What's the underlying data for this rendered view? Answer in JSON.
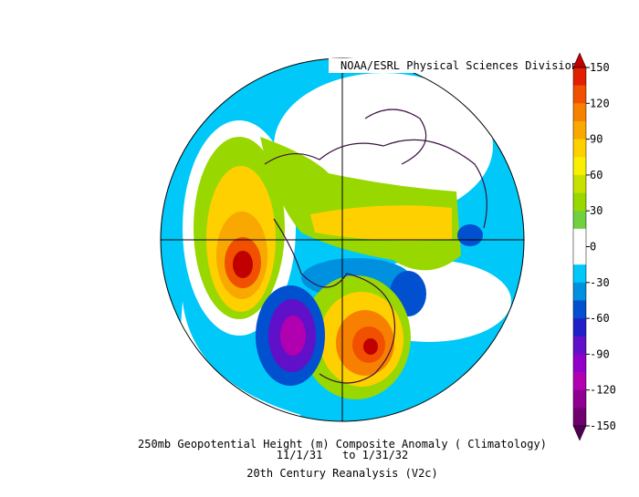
{
  "header": {
    "source": "NOAA/ESRL Physical Sciences Division"
  },
  "caption": {
    "title": "250mb Geopotential Height (m) Composite Anomaly ( Climatology)",
    "dates": "11/1/31   to 1/31/32",
    "dataset": "20th Century Reanalysis (V2c)"
  },
  "colorbar": {
    "lim": [
      -150,
      150
    ],
    "ticks": [
      150,
      120,
      90,
      60,
      30,
      0,
      -30,
      -60,
      -90,
      -120,
      -150
    ],
    "colors": [
      "#e02000",
      "#f05000",
      "#f88000",
      "#f8a800",
      "#ffd000",
      "#f8f000",
      "#c8e000",
      "#98d800",
      "#70d040",
      "#ffffff",
      "#ffffff",
      "#00c8f8",
      "#0090e0",
      "#0050d0",
      "#2020c8",
      "#6010c8",
      "#9000c8",
      "#b000b0",
      "#900090",
      "#700070"
    ],
    "over_color": "#c00000",
    "under_color": "#500050"
  }
}
